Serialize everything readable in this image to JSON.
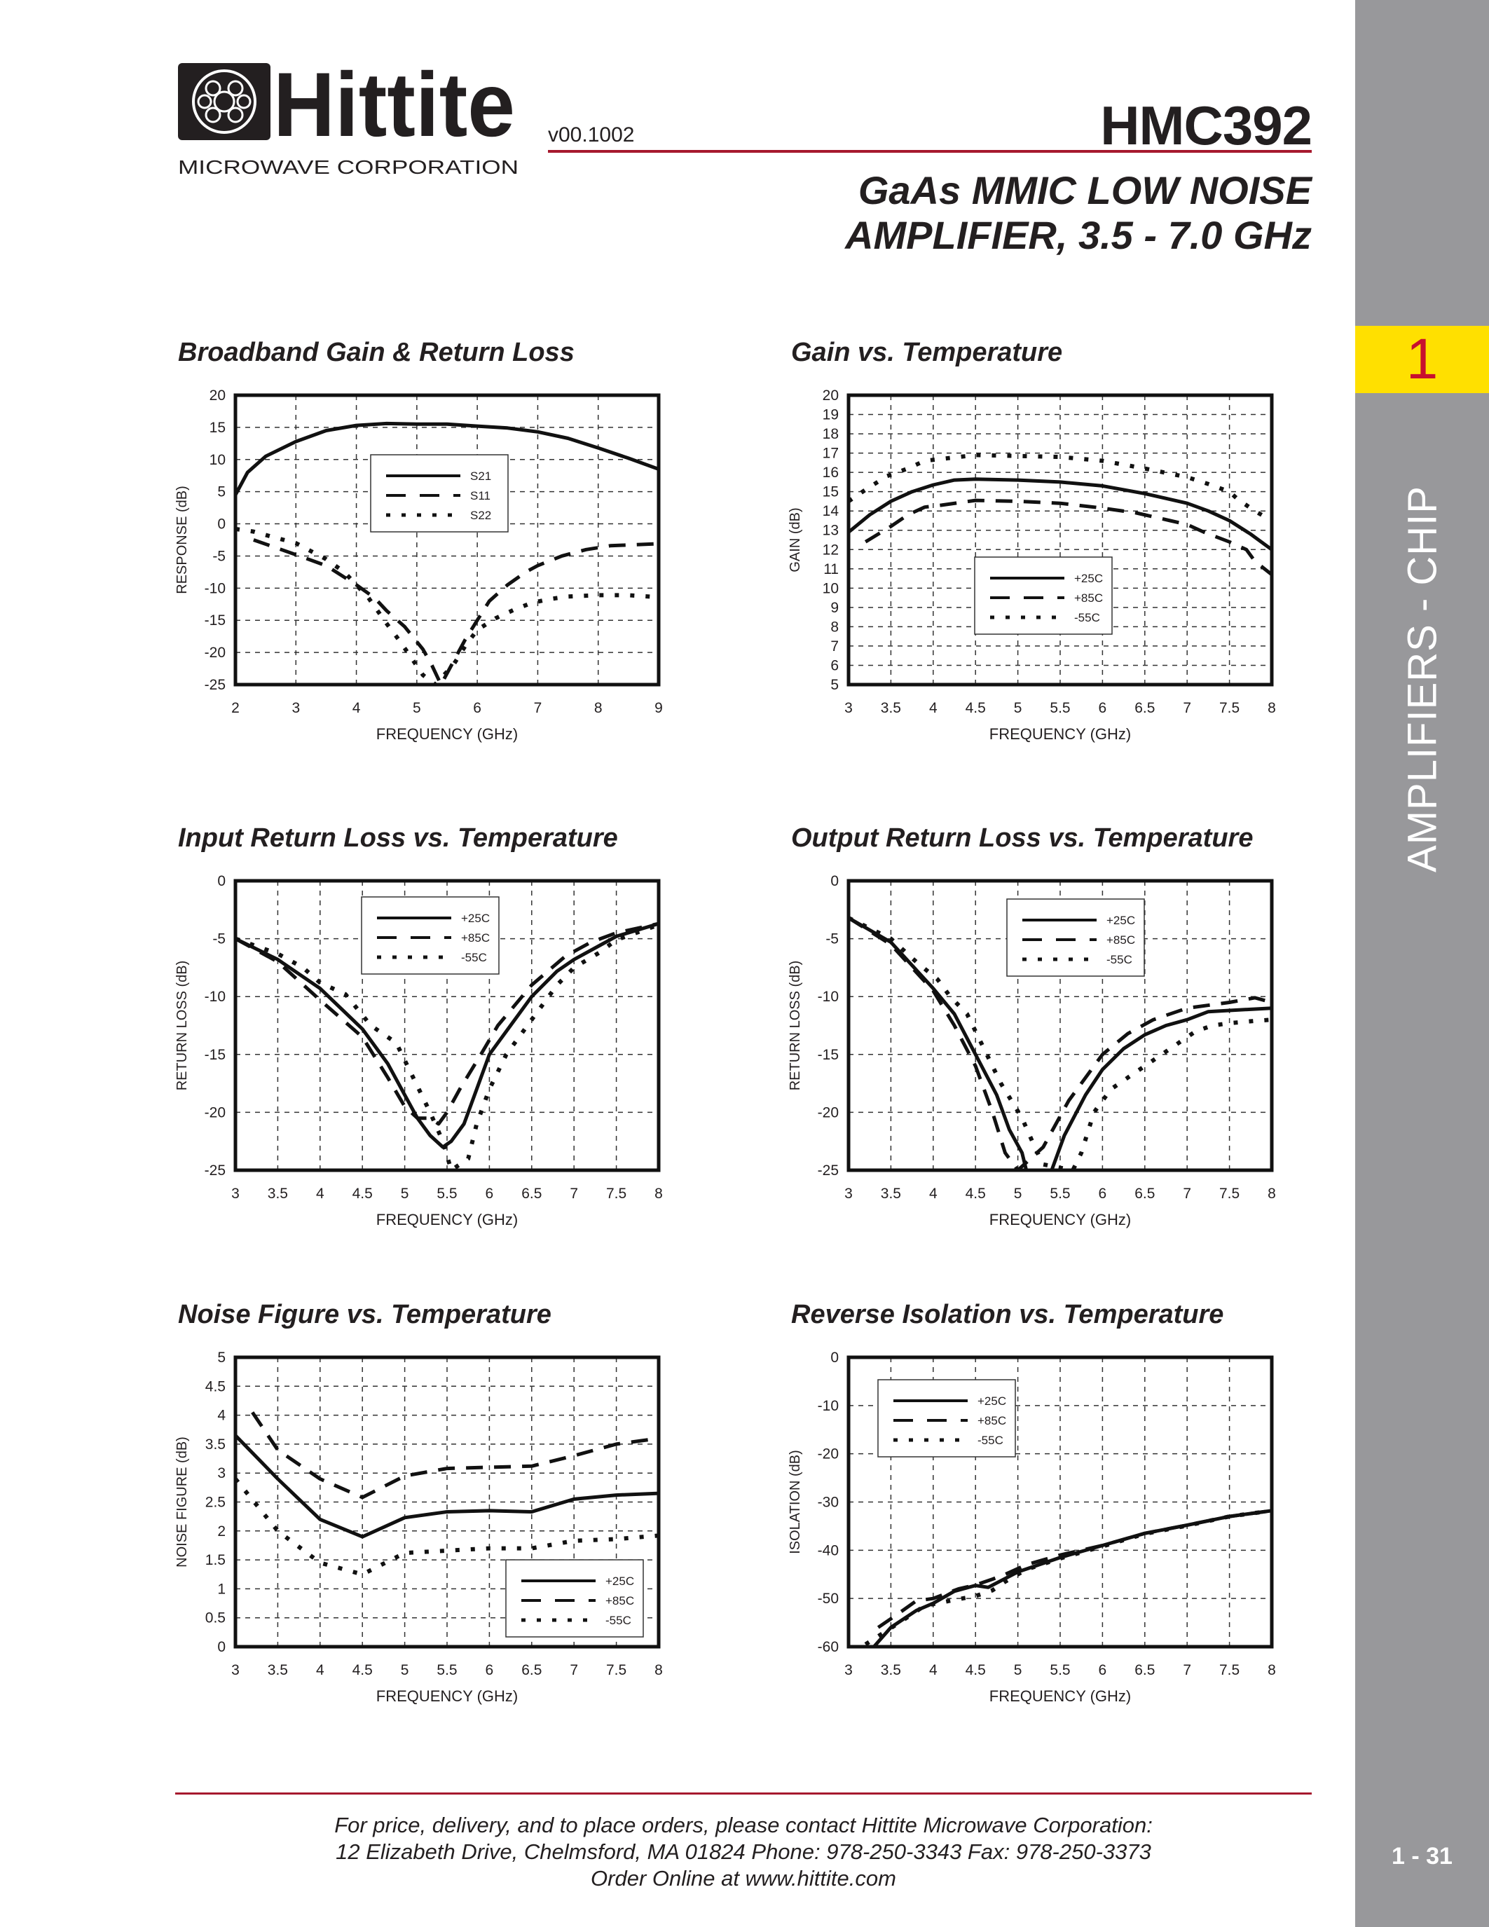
{
  "header": {
    "logo_text": "Hittite",
    "logo_subtext": "MICROWAVE CORPORATION",
    "version": "v00.1002",
    "part_number": "HMC392",
    "subtitle_line1": "GaAs MMIC LOW NOISE",
    "subtitle_line2": "AMPLIFIER, 3.5 - 7.0 GHz"
  },
  "sidebar": {
    "section_number": "1",
    "section_label": "AMPLIFIERS - CHIP",
    "page_number": "1 - 31",
    "colors": {
      "background": "#98989b",
      "tab": "#ffe000",
      "tab_text": "#c8102e"
    }
  },
  "footer": {
    "line1": "For price, delivery, and to place orders, please contact Hittite Microwave Corporation:",
    "line2": "12 Elizabeth Drive, Chelmsford, MA 01824 Phone: 978-250-3343  Fax: 978-250-3373",
    "line3": "Order Online at www.hittite.com"
  },
  "chart_data": [
    {
      "type": "line",
      "title": "Broadband Gain & Return Loss",
      "xlabel": "FREQUENCY (GHz)",
      "ylabel": "RESPONSE (dB)",
      "xlim": [
        2,
        9
      ],
      "ylim": [
        -25,
        20
      ],
      "xticks": [
        2,
        3,
        4,
        5,
        6,
        7,
        8,
        9
      ],
      "yticks": [
        -25,
        -20,
        -15,
        -10,
        -5,
        0,
        5,
        10,
        15,
        20
      ],
      "grid": true,
      "legend": "top-center",
      "series": [
        {
          "name": "S21",
          "style": "solid",
          "x": [
            2,
            2.2,
            2.5,
            3,
            3.5,
            4,
            4.5,
            5,
            5.5,
            6,
            6.5,
            7,
            7.5,
            8,
            8.5,
            9
          ],
          "y": [
            4.5,
            8,
            10.5,
            12.8,
            14.5,
            15.3,
            15.6,
            15.5,
            15.5,
            15.2,
            14.9,
            14.3,
            13.3,
            11.8,
            10.2,
            8.5
          ]
        },
        {
          "name": "S11",
          "style": "dashed",
          "x": [
            2.3,
            3,
            3.5,
            4,
            4.3,
            4.5,
            4.8,
            5.1,
            5.25,
            5.4,
            5.6,
            5.8,
            6,
            6.2,
            6.5,
            6.8,
            7,
            7.4,
            7.8,
            8.2,
            9
          ],
          "y": [
            -2.5,
            -4.8,
            -6.5,
            -9.5,
            -11.5,
            -13.5,
            -16,
            -19.5,
            -22,
            -25,
            -21.5,
            -18,
            -15,
            -12,
            -9.5,
            -7.5,
            -6.5,
            -5,
            -4,
            -3.4,
            -3.1
          ]
        },
        {
          "name": "S22",
          "style": "dotted",
          "x": [
            2,
            2.3,
            2.6,
            3,
            3.2,
            3.5,
            3.8,
            4.2,
            4.5,
            4.7,
            4.9,
            5.1,
            5.3,
            5.6,
            5.8,
            6,
            6.3,
            6.6,
            6.9,
            7.2,
            7.5,
            8,
            8.5,
            9
          ],
          "y": [
            -0.8,
            -1.2,
            -2,
            -3,
            -4,
            -5.5,
            -7.5,
            -11.5,
            -15.5,
            -18,
            -20.7,
            -23.5,
            -25,
            -22,
            -19,
            -16.5,
            -14.7,
            -13.4,
            -12.3,
            -11.7,
            -11.3,
            -11.1,
            -11.1,
            -11.4
          ]
        }
      ]
    },
    {
      "type": "line",
      "title": "Gain vs. Temperature",
      "xlabel": "FREQUENCY (GHz)",
      "ylabel": "GAIN (dB)",
      "xlim": [
        3,
        8
      ],
      "ylim": [
        5,
        20
      ],
      "xticks": [
        3,
        3.5,
        4,
        4.5,
        5,
        5.5,
        6,
        6.5,
        7,
        7.5,
        8
      ],
      "yticks": [
        5,
        6,
        7,
        8,
        9,
        10,
        11,
        12,
        13,
        14,
        15,
        16,
        17,
        18,
        19,
        20
      ],
      "grid": true,
      "legend": "bottom-center",
      "series": [
        {
          "name": "+25C",
          "style": "solid",
          "x": [
            3,
            3.25,
            3.5,
            3.75,
            4,
            4.25,
            4.5,
            5,
            5.5,
            6,
            6.5,
            7,
            7.25,
            7.5,
            7.75,
            8
          ],
          "y": [
            12.9,
            13.8,
            14.5,
            15,
            15.35,
            15.6,
            15.65,
            15.6,
            15.5,
            15.3,
            14.9,
            14.4,
            14,
            13.5,
            12.8,
            12
          ]
        },
        {
          "name": "+85C",
          "style": "dashed",
          "x": [
            3.2,
            3.5,
            3.7,
            3.9,
            4.1,
            4.5,
            5,
            5.5,
            6,
            6.4,
            6.8,
            7,
            7.2,
            7.5,
            7.7,
            7.8,
            8
          ],
          "y": [
            12.4,
            13.2,
            13.8,
            14.2,
            14.3,
            14.55,
            14.5,
            14.4,
            14.15,
            13.9,
            13.5,
            13.3,
            12.9,
            12.4,
            12,
            11.4,
            10.7
          ]
        },
        {
          "name": "-55C",
          "style": "dotted",
          "x": [
            3,
            3.2,
            3.45,
            3.7,
            3.9,
            4.1,
            4.5,
            5,
            5.5,
            6,
            6.5,
            7,
            7.25,
            7.5,
            7.6,
            7.8,
            8
          ],
          "y": [
            14.5,
            15.1,
            15.8,
            16.2,
            16.6,
            16.7,
            16.9,
            16.85,
            16.8,
            16.6,
            16.2,
            15.75,
            15.4,
            15,
            14.6,
            14,
            13.5
          ]
        }
      ]
    },
    {
      "type": "line",
      "title": "Input Return Loss vs. Temperature",
      "xlabel": "FREQUENCY (GHz)",
      "ylabel": "RETURN LOSS (dB)",
      "xlim": [
        3,
        8
      ],
      "ylim": [
        -25,
        0
      ],
      "xticks": [
        3,
        3.5,
        4,
        4.5,
        5,
        5.5,
        6,
        6.5,
        7,
        7.5,
        8
      ],
      "yticks": [
        -25,
        -20,
        -15,
        -10,
        -5,
        0
      ],
      "grid": true,
      "legend": "top-center",
      "series": [
        {
          "name": "+25C",
          "style": "solid",
          "x": [
            3,
            3.5,
            4,
            4.5,
            4.8,
            5,
            5.15,
            5.3,
            5.45,
            5.55,
            5.7,
            5.85,
            6,
            6.25,
            6.5,
            6.8,
            7,
            7.3,
            7.5,
            8
          ],
          "y": [
            -5,
            -6.8,
            -9.3,
            -12.8,
            -15.8,
            -18.5,
            -20.5,
            -22,
            -23,
            -22.5,
            -21,
            -18,
            -15,
            -12.5,
            -10,
            -7.8,
            -6.8,
            -5.6,
            -4.8,
            -3.7
          ]
        },
        {
          "name": "+85C",
          "style": "dashed",
          "x": [
            3,
            3.5,
            4,
            4.5,
            4.8,
            5,
            5.15,
            5.3,
            5.4,
            5.5,
            5.65,
            5.9,
            6.1,
            6.5,
            6.9,
            7.2,
            7.5,
            8
          ],
          "y": [
            -5,
            -7,
            -10.3,
            -13.5,
            -17,
            -19.5,
            -20.5,
            -20.5,
            -21,
            -20,
            -18,
            -15,
            -12.5,
            -9,
            -6.5,
            -5.3,
            -4.5,
            -3.7
          ]
        },
        {
          "name": "-55C",
          "style": "dotted",
          "x": [
            3,
            3.5,
            3.8,
            4,
            4.3,
            4.6,
            4.9,
            5,
            5.2,
            5.3,
            5.45,
            5.55,
            5.75,
            5.85,
            6,
            6.2,
            6.5,
            6.8,
            7,
            7.3,
            7.5,
            8
          ],
          "y": [
            -5,
            -6.3,
            -7.5,
            -8.8,
            -9.8,
            -12.5,
            -14,
            -15.5,
            -18.5,
            -20,
            -22.5,
            -25,
            -24,
            -21,
            -18,
            -15,
            -12,
            -9,
            -7.5,
            -6.2,
            -5.1,
            -3.8
          ]
        }
      ]
    },
    {
      "type": "line",
      "title": "Output Return Loss vs. Temperature",
      "xlabel": "FREQUENCY (GHz)",
      "ylabel": "RETURN LOSS (dB)",
      "xlim": [
        3,
        8
      ],
      "ylim": [
        -25,
        0
      ],
      "xticks": [
        3,
        3.5,
        4,
        4.5,
        5,
        5.5,
        6,
        6.5,
        7,
        7.5,
        8
      ],
      "yticks": [
        -25,
        -20,
        -15,
        -10,
        -5,
        0
      ],
      "grid": true,
      "legend": "top-right",
      "series": [
        {
          "name": "+25C",
          "style": "solid",
          "x": [
            3,
            3.5,
            4,
            4.25,
            4.5,
            4.75,
            4.9,
            5.05,
            5.1,
            5.4,
            5.55,
            5.8,
            6,
            6.25,
            6.5,
            6.75,
            7,
            7.25,
            7.5,
            8
          ],
          "y": [
            -3.2,
            -5.3,
            -9.3,
            -11.5,
            -15,
            -18.5,
            -21.5,
            -23.5,
            -25,
            -25,
            -22,
            -18.5,
            -16.3,
            -14.5,
            -13.3,
            -12.5,
            -12,
            -11.3,
            -11.2,
            -11
          ]
        },
        {
          "name": "+85C",
          "style": "dashed",
          "x": [
            3,
            3.5,
            4,
            4.25,
            4.5,
            4.7,
            4.85,
            5,
            5.3,
            5.6,
            6,
            6.3,
            6.6,
            7,
            7.5,
            7.8,
            8
          ],
          "y": [
            -3.2,
            -5.5,
            -9.5,
            -12.5,
            -16,
            -20,
            -23.5,
            -25,
            -23,
            -19,
            -15,
            -13.2,
            -12,
            -11,
            -10.5,
            -10.1,
            -10.5
          ]
        },
        {
          "name": "-55C",
          "style": "dotted",
          "x": [
            3,
            3.5,
            3.8,
            4.05,
            4.2,
            4.4,
            4.6,
            4.8,
            5.05,
            5.2,
            5.3,
            5.65,
            5.75,
            5.9,
            6.1,
            6.3,
            6.5,
            6.7,
            6.9,
            7.1,
            7.3,
            7.5,
            7.8,
            8
          ],
          "y": [
            -3.2,
            -5,
            -7,
            -8.5,
            -10,
            -11.5,
            -14.5,
            -17.5,
            -20.5,
            -23,
            -24.5,
            -25,
            -23.5,
            -20,
            -18,
            -17,
            -16,
            -15,
            -14,
            -13,
            -12.5,
            -12.3,
            -12.1,
            -12
          ]
        }
      ]
    },
    {
      "type": "line",
      "title": "Noise Figure vs. Temperature",
      "xlabel": "FREQUENCY (GHz)",
      "ylabel": "NOISE FIGURE (dB)",
      "xlim": [
        3,
        8
      ],
      "ylim": [
        0,
        5
      ],
      "xticks": [
        3,
        3.5,
        4,
        4.5,
        5,
        5.5,
        6,
        6.5,
        7,
        7.5,
        8
      ],
      "yticks": [
        0,
        0.5,
        1,
        1.5,
        2,
        2.5,
        3,
        3.5,
        4,
        4.5,
        5
      ],
      "grid": true,
      "legend": "bottom-right",
      "series": [
        {
          "name": "+25C",
          "style": "solid",
          "x": [
            3,
            3.5,
            4,
            4.5,
            5,
            5.5,
            6,
            6.5,
            7,
            7.5,
            8
          ],
          "y": [
            3.65,
            2.9,
            2.2,
            1.9,
            2.23,
            2.33,
            2.35,
            2.33,
            2.55,
            2.62,
            2.65
          ]
        },
        {
          "name": "+85C",
          "style": "dashed",
          "x": [
            3.2,
            3.5,
            4,
            4.5,
            5,
            5.5,
            6,
            6.5,
            7,
            7.5,
            8
          ],
          "y": [
            4.05,
            3.4,
            2.9,
            2.58,
            2.95,
            3.08,
            3.1,
            3.12,
            3.3,
            3.5,
            3.6
          ]
        },
        {
          "name": "-55C",
          "style": "dotted",
          "x": [
            3,
            3.5,
            4,
            4.5,
            5,
            5.5,
            6,
            6.5,
            7,
            7.5,
            8
          ],
          "y": [
            2.9,
            2,
            1.45,
            1.25,
            1.62,
            1.66,
            1.7,
            1.7,
            1.83,
            1.86,
            1.92
          ]
        }
      ]
    },
    {
      "type": "line",
      "title": "Reverse Isolation vs. Temperature",
      "xlabel": "FREQUENCY (GHz)",
      "ylabel": "ISOLATION (dB)",
      "xlim": [
        3,
        8
      ],
      "ylim": [
        -60,
        0
      ],
      "xticks": [
        3,
        3.5,
        4,
        4.5,
        5,
        5.5,
        6,
        6.5,
        7,
        7.5,
        8
      ],
      "yticks": [
        -60,
        -50,
        -40,
        -30,
        -20,
        -10,
        0
      ],
      "grid": true,
      "legend": "top-left",
      "series": [
        {
          "name": "+25C",
          "style": "solid",
          "x": [
            3.3,
            3.5,
            3.8,
            4,
            4.25,
            4.5,
            4.65,
            5,
            5.5,
            6,
            6.5,
            7,
            7.5,
            8
          ],
          "y": [
            -60,
            -56,
            -52.5,
            -51,
            -48.5,
            -47.3,
            -47.7,
            -44.5,
            -41.5,
            -39,
            -36.5,
            -34.8,
            -33,
            -31.8
          ]
        },
        {
          "name": "+85C",
          "style": "dashed",
          "x": [
            3.35,
            3.6,
            3.8,
            4,
            4.3,
            4.5,
            4.7,
            4.85,
            5.1,
            5.5,
            6,
            6.5,
            7,
            7.5,
            8
          ],
          "y": [
            -56,
            -53,
            -50.5,
            -50,
            -48,
            -47.2,
            -46,
            -45,
            -43,
            -41,
            -39,
            -36.5,
            -34.8,
            -33,
            -31.8
          ]
        },
        {
          "name": "-55C",
          "style": "dotted",
          "x": [
            3.2,
            3.6,
            3.9,
            4.25,
            4.5,
            4.7,
            4.85,
            5.1,
            5.5,
            6,
            6.5,
            7,
            7.5,
            8
          ],
          "y": [
            -59.5,
            -55,
            -51.5,
            -50.3,
            -49.5,
            -48.3,
            -46.5,
            -44,
            -41.7,
            -39.2,
            -36.6,
            -34.9,
            -33,
            -31.8
          ]
        }
      ]
    }
  ]
}
